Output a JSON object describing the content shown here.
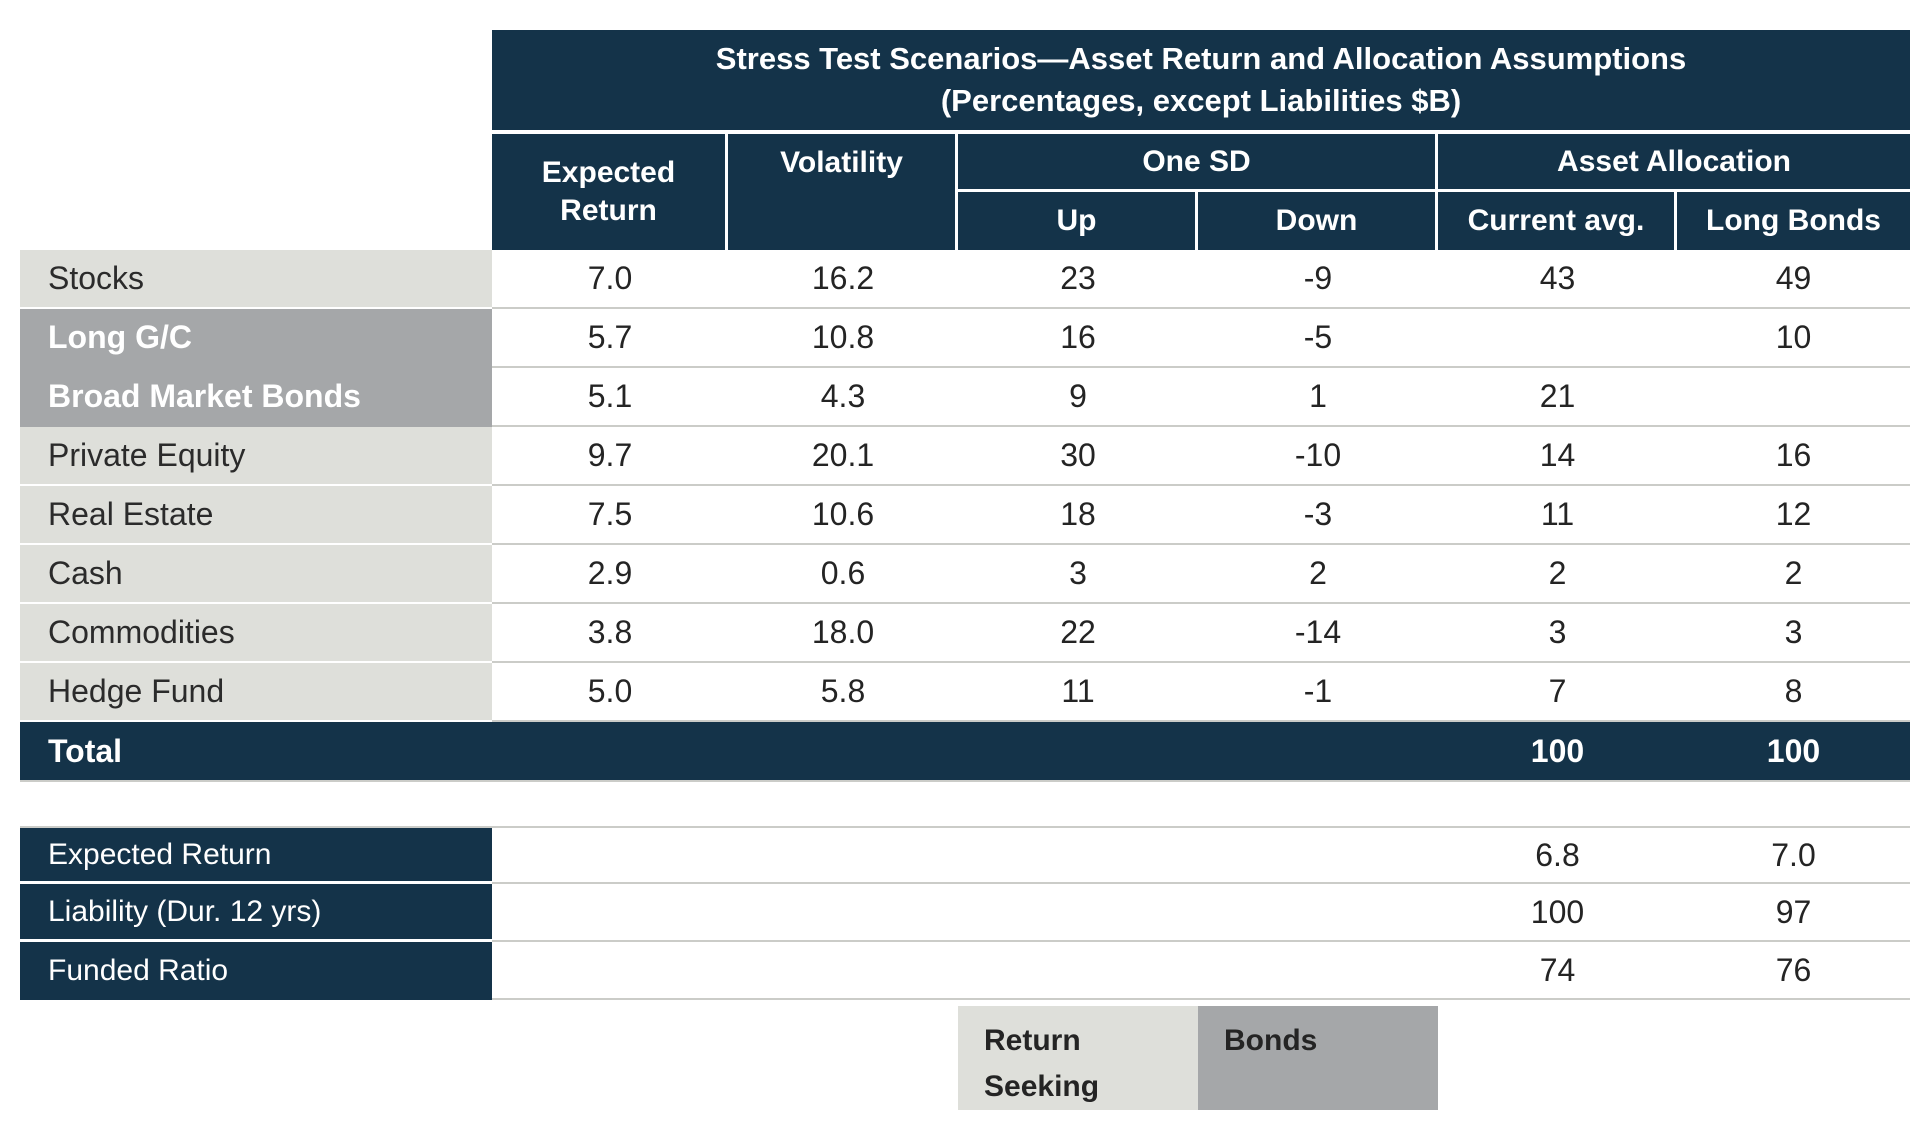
{
  "chart_data": {
    "type": "table",
    "title_line1": "Stress Test Scenarios—Asset Return and Allocation Assumptions",
    "title_line2": "(Percentages, except Liabilities $B)",
    "columns": {
      "expected_return": "Expected Return",
      "volatility": "Volatility",
      "one_sd": "One SD",
      "up": "Up",
      "down": "Down",
      "asset_allocation": "Asset Allocation",
      "current_avg": "Current avg.",
      "long_bonds": "Long Bonds"
    },
    "rows": [
      {
        "label": "Stocks",
        "group": "return-seeking",
        "expected_return": "7.0",
        "volatility": "16.2",
        "up": "23",
        "down": "-9",
        "current_avg": "43",
        "long_bonds": "49"
      },
      {
        "label": "Long G/C",
        "group": "bonds",
        "expected_return": "5.7",
        "volatility": "10.8",
        "up": "16",
        "down": "-5",
        "current_avg": "",
        "long_bonds": "10"
      },
      {
        "label": "Broad Market Bonds",
        "group": "bonds",
        "expected_return": "5.1",
        "volatility": "4.3",
        "up": "9",
        "down": "1",
        "current_avg": "21",
        "long_bonds": ""
      },
      {
        "label": "Private Equity",
        "group": "return-seeking",
        "expected_return": "9.7",
        "volatility": "20.1",
        "up": "30",
        "down": "-10",
        "current_avg": "14",
        "long_bonds": "16"
      },
      {
        "label": "Real Estate",
        "group": "return-seeking",
        "expected_return": "7.5",
        "volatility": "10.6",
        "up": "18",
        "down": "-3",
        "current_avg": "11",
        "long_bonds": "12"
      },
      {
        "label": "Cash",
        "group": "return-seeking",
        "expected_return": "2.9",
        "volatility": "0.6",
        "up": "3",
        "down": "2",
        "current_avg": "2",
        "long_bonds": "2"
      },
      {
        "label": "Commodities",
        "group": "return-seeking",
        "expected_return": "3.8",
        "volatility": "18.0",
        "up": "22",
        "down": "-14",
        "current_avg": "3",
        "long_bonds": "3"
      },
      {
        "label": "Hedge Fund",
        "group": "return-seeking",
        "expected_return": "5.0",
        "volatility": "5.8",
        "up": "11",
        "down": "-1",
        "current_avg": "7",
        "long_bonds": "8"
      }
    ],
    "total": {
      "label": "Total",
      "current_avg": "100",
      "long_bonds": "100"
    },
    "summary_rows": [
      {
        "label": "Expected Return",
        "current_avg": "6.8",
        "long_bonds": "7.0"
      },
      {
        "label": "Liability (Dur. 12 yrs)",
        "current_avg": "100",
        "long_bonds": "97"
      },
      {
        "label": "Funded Ratio",
        "current_avg": "74",
        "long_bonds": "76"
      }
    ],
    "legend": [
      {
        "label": "Return Seeking",
        "swatch": "#DEDFDA"
      },
      {
        "label": "Bonds",
        "swatch": "#A5A7A9"
      }
    ]
  },
  "colors": {
    "navy": "#143349",
    "light_gray": "#DEDFDA",
    "dark_gray": "#A5A7A9",
    "row_line": "#CBCCC8",
    "text_dark": "#242424",
    "white": "#FFFFFF"
  }
}
